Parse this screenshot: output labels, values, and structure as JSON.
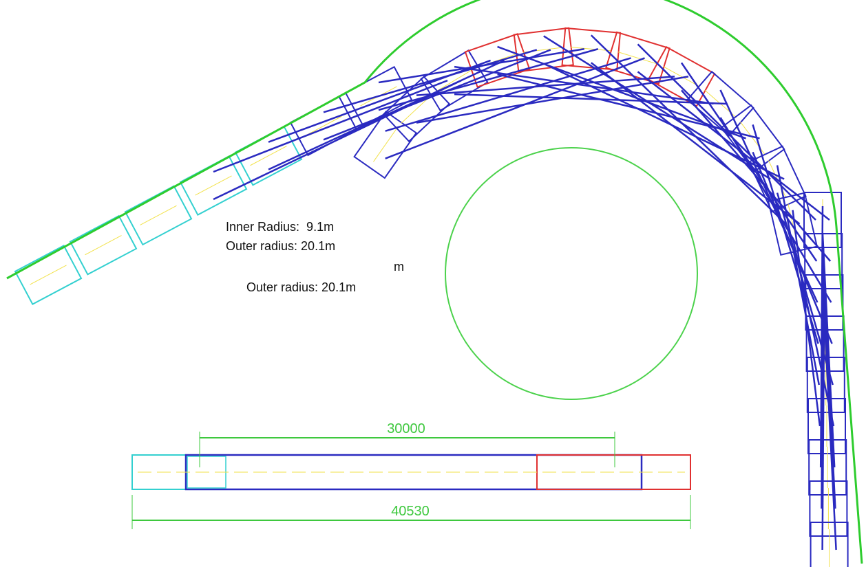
{
  "labels": {
    "inner_radius": "Inner Radius:  9.1m",
    "outer_radius": "Outer radius: 20.1m",
    "overlay_fragment": "m",
    "outer_radius_overlay": "Outer radius: 20.1m"
  },
  "dimensions": {
    "inner_length": "30000",
    "overall_length": "40530"
  }
}
